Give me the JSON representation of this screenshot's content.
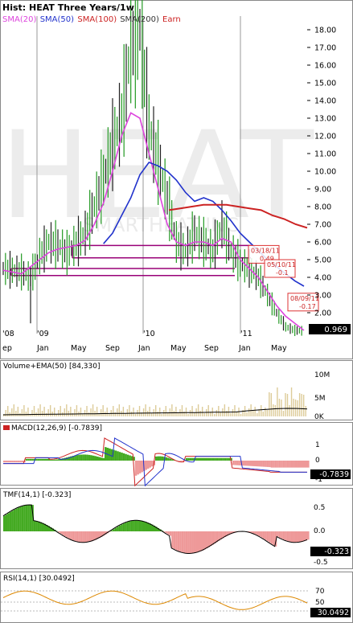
{
  "title": "Hist: HEAT Three Years/1w",
  "legend": [
    {
      "label": "SMA(20)",
      "color": "#dd44dd"
    },
    {
      "label": "SMA(50)",
      "color": "#2233cc"
    },
    {
      "label": "SMA(100)",
      "color": "#cc2222"
    },
    {
      "label": "SMA(200)",
      "color": "#333333"
    },
    {
      "label": "Earn",
      "color": "#cc2222"
    }
  ],
  "watermark": "HEAT",
  "watermark_sub": "SMARTHEAT INC",
  "colors": {
    "sma20": "#dd44dd",
    "sma50": "#2233cc",
    "sma100": "#cc2222",
    "price_up": "#229922",
    "price_down": "#222222",
    "support": "#990077",
    "fill_green": "#44aa22",
    "fill_red": "#ee9999"
  },
  "year_labels": [
    "'08",
    "'09",
    "'10",
    "'11"
  ],
  "month_labels": [
    "ep",
    "Jan",
    "May",
    "Sep",
    "Jan",
    "May",
    "Sep",
    "Jan",
    "May"
  ],
  "price_ticks": [
    "18.00",
    "17.00",
    "16.00",
    "15.00",
    "14.00",
    "13.00",
    "12.00",
    "11.00",
    "10.00",
    "9.00",
    "8.00",
    "7.00",
    "6.00",
    "5.00",
    "4.00",
    "3.00",
    "2.00"
  ],
  "last_price": "0.969",
  "annotations": [
    {
      "date": "03/18/11",
      "value": "0.49"
    },
    {
      "date": "05/10/11",
      "value": "-0.1"
    },
    {
      "date": "08/09/11",
      "value": "-0.17"
    }
  ],
  "volume": {
    "label": "Volume+EMA(50)",
    "value": "[84,330]",
    "ticks": [
      "10M",
      "5M",
      "0K"
    ]
  },
  "macd": {
    "label": "MACD(12,26,9)",
    "value": "[-0.7839]",
    "ticks": [
      "1",
      "0",
      "-1"
    ],
    "last": "-0.7839"
  },
  "tmf": {
    "label": "TMF(14,1)",
    "value": "[-0.323]",
    "ticks": [
      "0.5",
      "0.0",
      "-0.5"
    ],
    "last": "-0.323"
  },
  "rsi": {
    "label": "RSI(14,1)",
    "value": "[30.0492]",
    "ticks": [
      "70",
      "50",
      "30"
    ],
    "last": "30.0492"
  },
  "chart_data": [
    {
      "type": "line",
      "title": "Hist: HEAT Three Years/1w",
      "ylim": [
        0,
        18.5
      ],
      "series": [
        {
          "name": "Close",
          "values": [
            4.5,
            4.4,
            4.3,
            4.0,
            5.2,
            6.0,
            5.8,
            5.4,
            5.9,
            6.5,
            8.0,
            9.5,
            11.5,
            13.0,
            17.0,
            18.0,
            12.5,
            10.5,
            8.5,
            6.0,
            5.5,
            6.5,
            6.0,
            5.5,
            7.0,
            5.5,
            4.8,
            4.5,
            4.0,
            3.0,
            2.0,
            1.2,
            1.0,
            0.969
          ]
        },
        {
          "name": "SMA(20)",
          "values": [
            4.4,
            4.3,
            4.2,
            4.6,
            5.0,
            5.4,
            5.6,
            5.7,
            5.8,
            6.1,
            7.0,
            8.2,
            10.0,
            12.0,
            13.3,
            13.0,
            11.0,
            9.0,
            7.0,
            6.0,
            5.8,
            6.0,
            6.0,
            5.8,
            6.2,
            6.0,
            5.0,
            4.5,
            4.0,
            3.2,
            2.4,
            1.8,
            1.4,
            1.0
          ]
        },
        {
          "name": "SMA(50)",
          "values": [
            null,
            null,
            null,
            null,
            null,
            null,
            null,
            null,
            null,
            null,
            5.9,
            6.5,
            7.5,
            8.5,
            9.8,
            10.5,
            10.3,
            10.0,
            9.5,
            8.8,
            8.3,
            8.5,
            8.3,
            7.8,
            7.2,
            6.5,
            6.0,
            5.5,
            5.0,
            4.6,
            4.2,
            3.8,
            3.5
          ]
        },
        {
          "name": "SMA(100)",
          "values": [
            null,
            null,
            null,
            null,
            null,
            null,
            null,
            null,
            null,
            null,
            null,
            null,
            null,
            null,
            null,
            null,
            null,
            7.8,
            7.9,
            8.0,
            8.1,
            8.1,
            8.1,
            8.0,
            7.9,
            7.8,
            7.5,
            7.3,
            7.0,
            6.8
          ]
        }
      ],
      "support_levels": [
        5.8,
        5.1,
        4.5,
        4.1
      ]
    },
    {
      "type": "bar",
      "title": "Volume+EMA(50)",
      "ylim": [
        0,
        11000000
      ]
    },
    {
      "type": "area",
      "title": "MACD(12,26,9)",
      "ylim": [
        -2.4,
        2.0
      ],
      "last": -0.7839
    },
    {
      "type": "area",
      "title": "TMF(14,1)",
      "ylim": [
        -0.7,
        0.7
      ],
      "last": -0.323
    },
    {
      "type": "line",
      "title": "RSI(14,1)",
      "ylim": [
        0,
        100
      ],
      "last": 30.0492
    }
  ]
}
